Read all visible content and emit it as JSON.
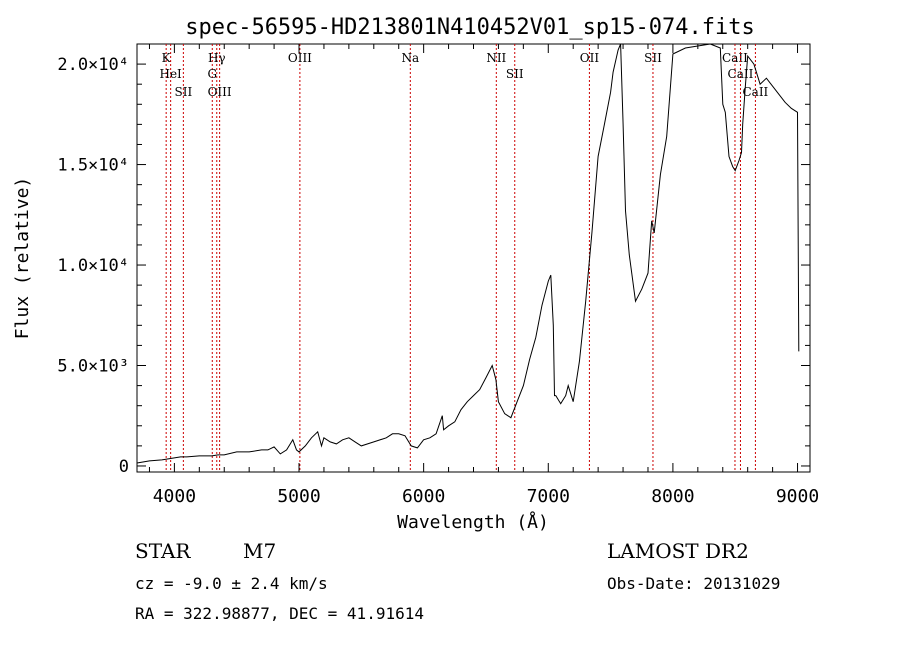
{
  "chart_data": {
    "type": "line",
    "title": "spec-56595-HD213801N410452V01_sp15-074.fits",
    "xlabel": "Wavelength (Å)",
    "ylabel": "Flux (relative)",
    "xlim": [
      3700,
      9100
    ],
    "ylim": [
      -300,
      21000
    ],
    "xticks": [
      4000,
      5000,
      6000,
      7000,
      8000,
      9000
    ],
    "xtick_labels": [
      "4000",
      "5000",
      "6000",
      "7000",
      "8000",
      "9000"
    ],
    "yticks": [
      0,
      5000,
      10000,
      15000,
      20000
    ],
    "ytick_labels": [
      "0",
      "5.0×10³",
      "1.0×10⁴",
      "1.5×10⁴",
      "2.0×10⁴"
    ],
    "grid": false,
    "line_color": "#000000",
    "marker_color": "#cc0000",
    "series": [
      {
        "x": [
          3700,
          3800,
          3900,
          3950,
          4000,
          4050,
          4100,
          4200,
          4300,
          4350,
          4400,
          4500,
          4600,
          4700,
          4750,
          4800,
          4850,
          4900,
          4950,
          4980,
          5000,
          5050,
          5100,
          5150,
          5180,
          5200,
          5250,
          5300,
          5350,
          5400,
          5450,
          5500,
          5600,
          5700,
          5750,
          5800,
          5850,
          5900,
          5950,
          6000,
          6050,
          6100,
          6150,
          6160,
          6200,
          6250,
          6300,
          6350,
          6400,
          6450,
          6500,
          6550,
          6580,
          6600,
          6650,
          6700,
          6750,
          6800,
          6850,
          6900,
          6950,
          7000,
          7020,
          7040,
          7050,
          7060,
          7100,
          7140,
          7160,
          7200,
          7250,
          7300,
          7350,
          7400,
          7450,
          7500,
          7520,
          7560,
          7580,
          7600,
          7620,
          7650,
          7700,
          7750,
          7800,
          7830,
          7850,
          7900,
          7950,
          8000,
          8100,
          8200,
          8300,
          8380,
          8400,
          8420,
          8450,
          8480,
          8500,
          8530,
          8550,
          8560,
          8580,
          8600,
          8650,
          8700,
          8750,
          8800,
          8850,
          8900,
          8950,
          9000,
          9010
        ],
        "y": [
          150,
          250,
          300,
          350,
          400,
          450,
          450,
          500,
          500,
          550,
          550,
          700,
          700,
          800,
          800,
          950,
          600,
          800,
          1300,
          800,
          700,
          1000,
          1400,
          1700,
          1000,
          1400,
          1200,
          1100,
          1300,
          1400,
          1200,
          1000,
          1200,
          1400,
          1600,
          1600,
          1500,
          1000,
          900,
          1300,
          1400,
          1600,
          2500,
          1800,
          2000,
          2200,
          2800,
          3200,
          3500,
          3800,
          4400,
          5000,
          4300,
          3200,
          2600,
          2400,
          3200,
          4000,
          5300,
          6400,
          8000,
          9200,
          9500,
          7000,
          3500,
          3500,
          3100,
          3500,
          4000,
          3200,
          5200,
          8200,
          11600,
          15400,
          17000,
          18600,
          19600,
          20700,
          21000,
          17000,
          12700,
          10500,
          8200,
          8800,
          9600,
          12200,
          11600,
          14500,
          16400,
          20500,
          20800,
          20900,
          21000,
          20800,
          18000,
          17600,
          15400,
          14900,
          14700,
          15200,
          15600,
          17000,
          18800,
          20400,
          20000,
          19000,
          19300,
          18900,
          18500,
          18100,
          17800,
          17600,
          5700
        ]
      }
    ],
    "lines": [
      {
        "label": "K",
        "x": 3934
      },
      {
        "label": "HeI",
        "x": 3970
      },
      {
        "label": "SII",
        "x": 4072
      },
      {
        "label": "Hγ",
        "x": 4340
      },
      {
        "label": "G",
        "x": 4304
      },
      {
        "label": "OIII",
        "x": 4363
      },
      {
        "label": "OIII",
        "x": 5007
      },
      {
        "label": "Na",
        "x": 5893
      },
      {
        "label": "NII",
        "x": 6583
      },
      {
        "label": "SII",
        "x": 6731
      },
      {
        "label": "OII",
        "x": 7330
      },
      {
        "label": "SII",
        "x": 7840
      },
      {
        "label": "CaII",
        "x": 8498
      },
      {
        "label": "CaII",
        "x": 8542
      },
      {
        "label": "CaII",
        "x": 8662
      }
    ]
  },
  "info": {
    "object_class": "STAR",
    "subclass": "M7",
    "redshift": "cz = -9.0 ± 2.4 km/s",
    "coords": "RA = 322.98877, DEC =  41.91614",
    "survey": "LAMOST DR2",
    "obs_date": "Obs-Date: 20131029"
  }
}
